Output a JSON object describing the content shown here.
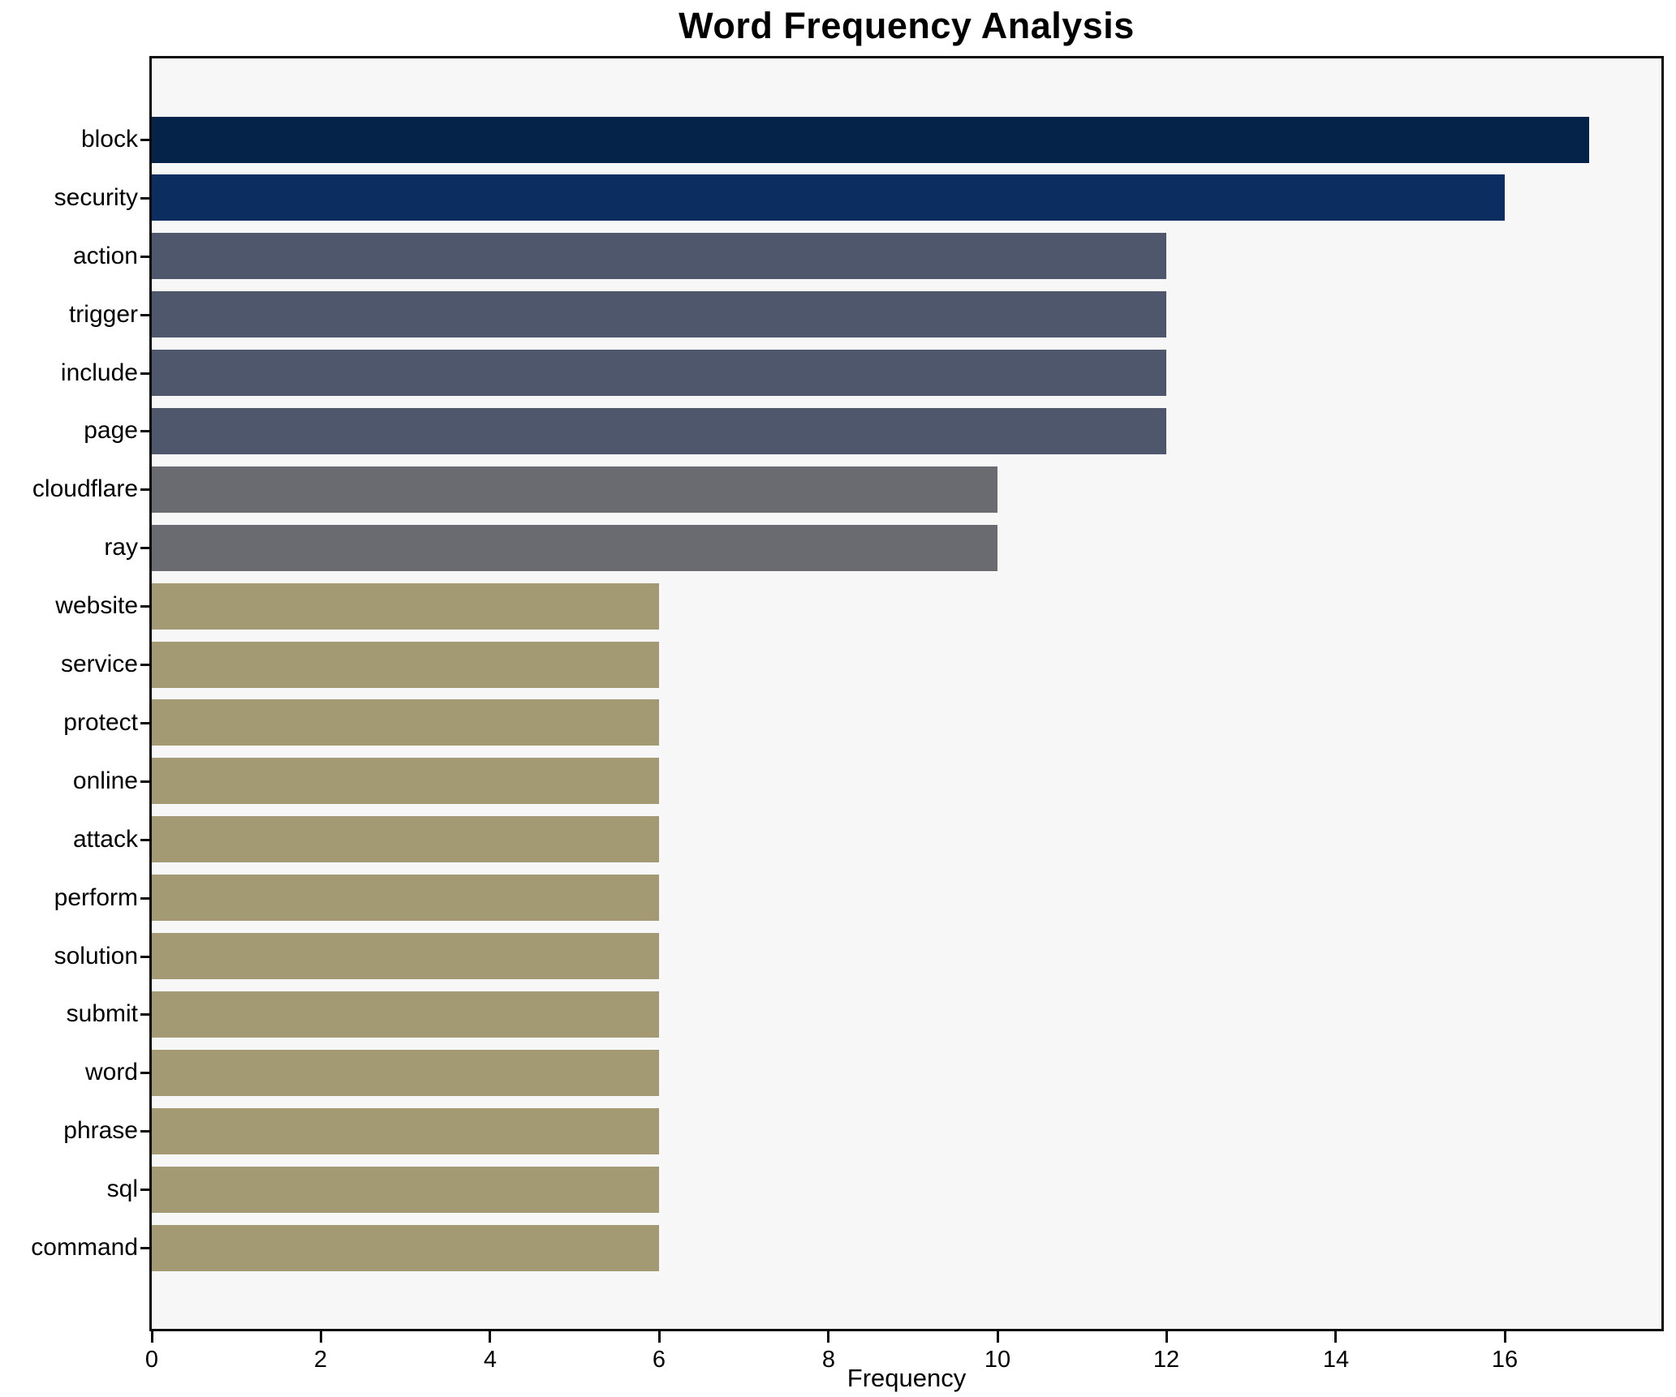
{
  "title": "Word Frequency Analysis",
  "chart_data": {
    "type": "bar",
    "orientation": "horizontal",
    "title": "Word Frequency Analysis",
    "xlabel": "Frequency",
    "ylabel": "",
    "categories": [
      "block",
      "security",
      "action",
      "trigger",
      "include",
      "page",
      "cloudflare",
      "ray",
      "website",
      "service",
      "protect",
      "online",
      "attack",
      "perform",
      "solution",
      "submit",
      "word",
      "phrase",
      "sql",
      "command"
    ],
    "values": [
      17,
      16,
      12,
      12,
      12,
      12,
      10,
      10,
      6,
      6,
      6,
      6,
      6,
      6,
      6,
      6,
      6,
      6,
      6,
      6
    ],
    "bar_colors": [
      "#052248",
      "#0b2d5f",
      "#4e576c",
      "#4e576c",
      "#4e576c",
      "#4e576c",
      "#6a6b70",
      "#6a6b70",
      "#a39a73",
      "#a39a73",
      "#a39a73",
      "#a39a73",
      "#a39a73",
      "#a39a73",
      "#a39a73",
      "#a39a73",
      "#a39a73",
      "#a39a73",
      "#a39a73",
      "#a39a73"
    ],
    "x_ticks": [
      0,
      2,
      4,
      6,
      8,
      10,
      12,
      14,
      16
    ],
    "xlim": [
      0,
      17.85
    ],
    "grid": false,
    "legend_position": "none",
    "plot_background": "#f7f7f7",
    "figure_background": "#ffffff"
  }
}
